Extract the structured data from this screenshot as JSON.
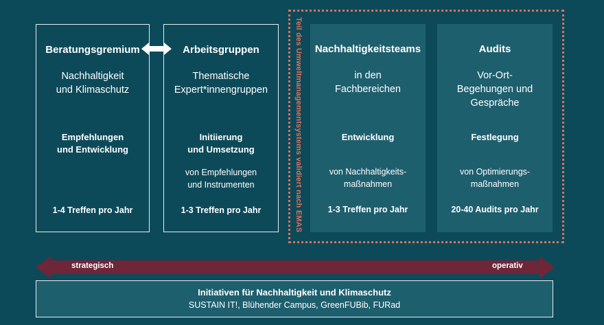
{
  "columns": [
    {
      "title": "Beratungsgremium",
      "sub1": "Nachhaltigkeit",
      "sub2": "und Klimaschutz",
      "sub3": "",
      "bold1": "Empfehlungen",
      "bold2": "und Entwicklung",
      "small1": "",
      "small2": "",
      "freq": "1-4 Treffen pro Jahr"
    },
    {
      "title": "Arbeitsgruppen",
      "sub1": "Thematische",
      "sub2": "Expert*innengruppen",
      "sub3": "",
      "bold1": "Initiierung",
      "bold2": "und Umsetzung",
      "small1": "von Empfehlungen",
      "small2": "und Instrumenten",
      "freq": "1-3 Treffen pro Jahr"
    },
    {
      "title": "Nachhaltigkeitsteams",
      "sub1": "in den",
      "sub2": "Fachbereichen",
      "sub3": "",
      "bold1": "Entwicklung",
      "bold2": "",
      "small1": "von Nachhaltigkeits-",
      "small2": "maßnahmen",
      "freq": "1-3 Treffen pro Jahr"
    },
    {
      "title": "Audits",
      "sub1": "Vor-Ort-",
      "sub2": "Begehungen und",
      "sub3": "Gespräche",
      "bold1": "Festlegung",
      "bold2": "",
      "small1": "von Optimierungs-",
      "small2": "maßnahmen",
      "freq": "20-40 Audits pro Jahr"
    }
  ],
  "emas_label": "Teil des Umweltmanagementsystems validiert nach EMAS",
  "arrow": {
    "left_label": "strategisch",
    "right_label": "operativ"
  },
  "bottom": {
    "title": "Initiativen für Nachhaltigkeit und Klimaschutz",
    "subtitle": "SUSTAIN IT!, Blühender Campus, GreenFUBib, FURad"
  },
  "colors": {
    "background": "#0d4a59",
    "filled_box": "#1e5f6e",
    "dotted_border": "#e0705c",
    "arrow": "#6e2638"
  }
}
